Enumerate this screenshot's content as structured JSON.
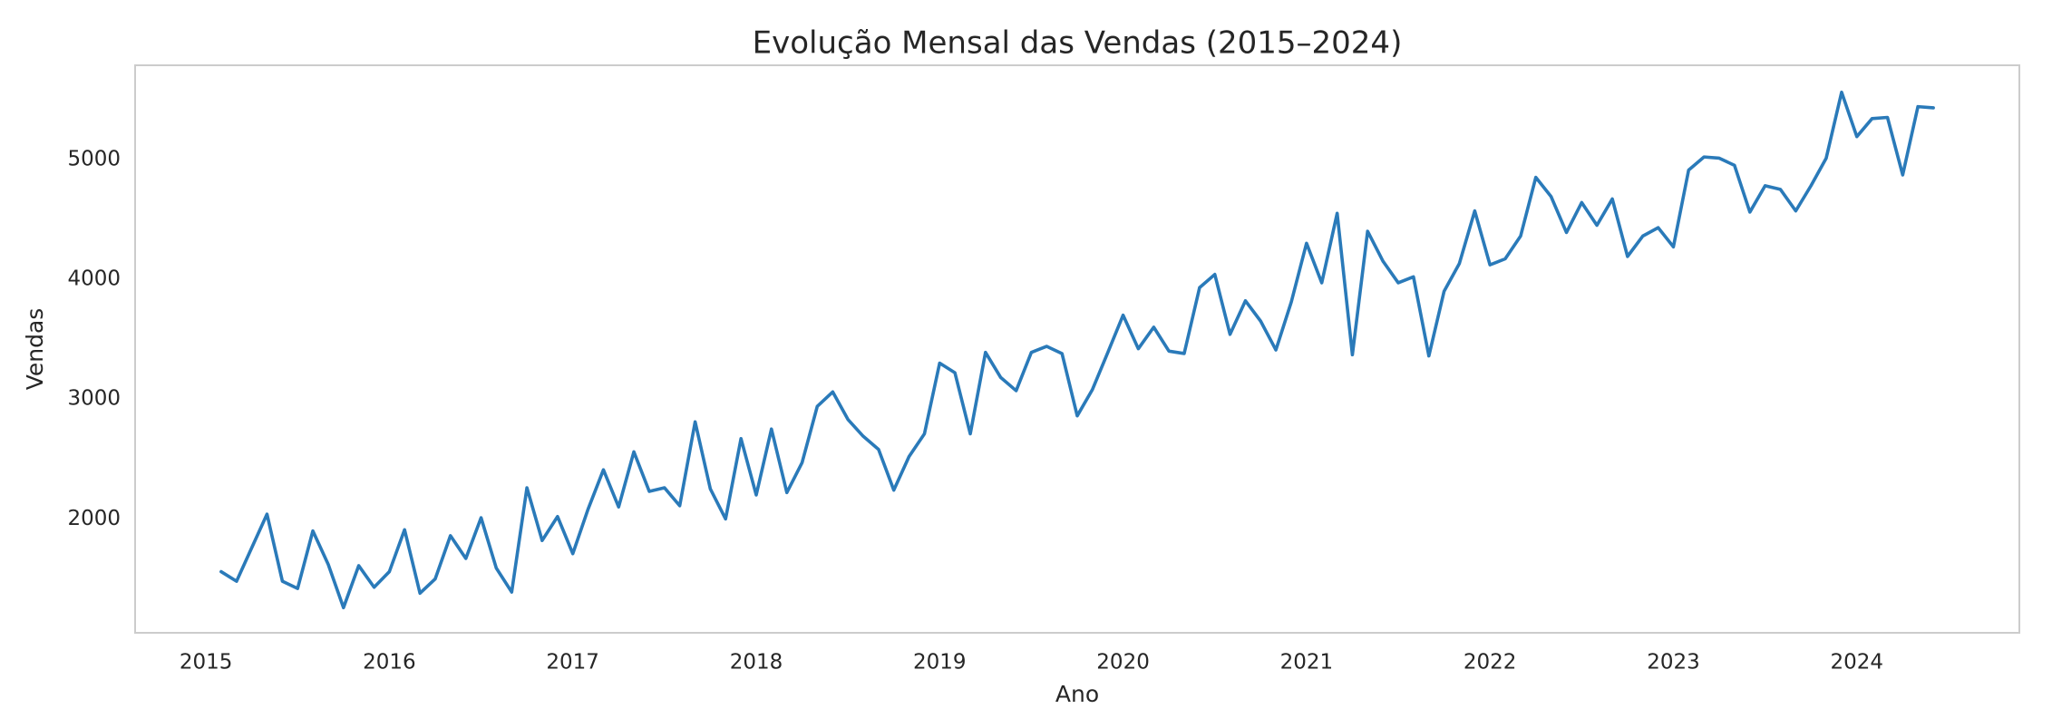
{
  "chart_data": {
    "type": "line",
    "title": "Evolução Mensal das Vendas (2015–2024)",
    "x_label": "Ano",
    "y_label": "Vendas",
    "grid": false,
    "xlim": [
      2014.614,
      2024.886
    ],
    "ylim": [
      1050,
      5785
    ],
    "xticks": [
      2015,
      2016,
      2017,
      2018,
      2019,
      2020,
      2021,
      2022,
      2023,
      2024
    ],
    "yticks": [
      2000,
      3000,
      4000,
      5000
    ],
    "x": [
      2015.083,
      2015.167,
      2015.25,
      2015.333,
      2015.417,
      2015.5,
      2015.583,
      2015.667,
      2015.75,
      2015.833,
      2015.917,
      2016,
      2016.083,
      2016.167,
      2016.25,
      2016.333,
      2016.417,
      2016.5,
      2016.583,
      2016.667,
      2016.75,
      2016.833,
      2016.917,
      2017,
      2017.083,
      2017.167,
      2017.25,
      2017.333,
      2017.417,
      2017.5,
      2017.583,
      2017.667,
      2017.75,
      2017.833,
      2017.917,
      2018,
      2018.083,
      2018.167,
      2018.25,
      2018.333,
      2018.417,
      2018.5,
      2018.583,
      2018.667,
      2018.75,
      2018.833,
      2018.917,
      2019,
      2019.083,
      2019.167,
      2019.25,
      2019.333,
      2019.417,
      2019.5,
      2019.583,
      2019.667,
      2019.75,
      2019.833,
      2019.917,
      2020,
      2020.083,
      2020.167,
      2020.25,
      2020.333,
      2020.417,
      2020.5,
      2020.583,
      2020.667,
      2020.75,
      2020.833,
      2020.917,
      2021,
      2021.083,
      2021.167,
      2021.25,
      2021.333,
      2021.417,
      2021.5,
      2021.583,
      2021.667,
      2021.75,
      2021.833,
      2021.917,
      2022,
      2022.083,
      2022.167,
      2022.25,
      2022.333,
      2022.417,
      2022.5,
      2022.583,
      2022.667,
      2022.75,
      2022.833,
      2022.917,
      2023,
      2023.083,
      2023.167,
      2023.25,
      2023.333,
      2023.417,
      2023.5,
      2023.583,
      2023.667,
      2023.75,
      2023.833,
      2023.917,
      2024,
      2024.083,
      2024.167,
      2024.25,
      2024.333,
      2024.417
    ],
    "series": [
      {
        "name": "Vendas",
        "color": "#2a7ab9",
        "values": [
          1560,
          1480,
          1760,
          2040,
          1480,
          1420,
          1900,
          1620,
          1260,
          1610,
          1430,
          1560,
          1910,
          1380,
          1500,
          1860,
          1670,
          2010,
          1590,
          1390,
          2260,
          1820,
          2020,
          1710,
          2080,
          2410,
          2100,
          2560,
          2230,
          2260,
          2110,
          2810,
          2250,
          2000,
          2670,
          2200,
          2750,
          2220,
          2470,
          2940,
          3060,
          2830,
          2690,
          2580,
          2240,
          2520,
          2710,
          3300,
          3220,
          2710,
          3390,
          3180,
          3070,
          3390,
          3440,
          3380,
          2860,
          3080,
          3390,
          3700,
          3420,
          3600,
          3400,
          3380,
          3930,
          4040,
          3540,
          3820,
          3650,
          3410,
          3810,
          4300,
          3970,
          4550,
          3370,
          4400,
          4150,
          3970,
          4020,
          3360,
          3900,
          4130,
          4570,
          4120,
          4170,
          4360,
          4850,
          4690,
          4390,
          4640,
          4450,
          4670,
          4190,
          4360,
          4430,
          4270,
          4910,
          5020,
          5010,
          4950,
          4560,
          4780,
          4750,
          4570,
          4780,
          5010,
          5560,
          5190,
          5340,
          5350,
          4870,
          5440,
          5430
        ]
      }
    ]
  }
}
